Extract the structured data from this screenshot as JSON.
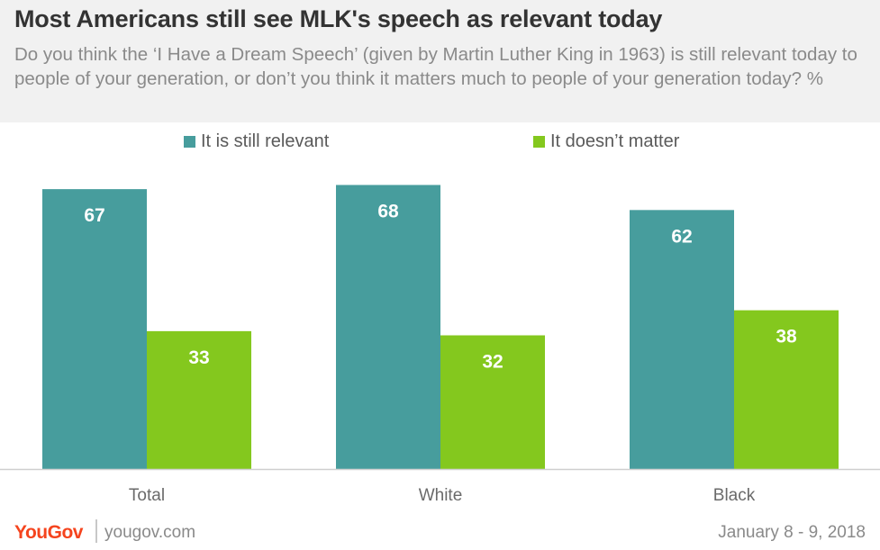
{
  "header": {
    "title": "Most Americans still see MLK's speech as relevant today",
    "subtitle": "Do you think the ‘I Have a Dream Speech’ (given by Martin Luther King in 1963) is still relevant today to people of your generation, or don’t you think it matters much to people of your generation today?  %"
  },
  "footer": {
    "logo": "YouGov",
    "site": "yougov.com",
    "date": "January 8 - 9, 2018"
  },
  "colors": {
    "relevant": "#479d9d",
    "doesnt_matter": "#84c81e"
  },
  "chart_data": {
    "type": "bar",
    "categories": [
      "Total",
      "White",
      "Black"
    ],
    "series": [
      {
        "name": "It is still relevant",
        "values": [
          67,
          68,
          62
        ]
      },
      {
        "name": "It doesn’t matter",
        "values": [
          33,
          32,
          38
        ]
      }
    ],
    "ylim": [
      0,
      100
    ],
    "grid": false,
    "legend_position": "top"
  }
}
